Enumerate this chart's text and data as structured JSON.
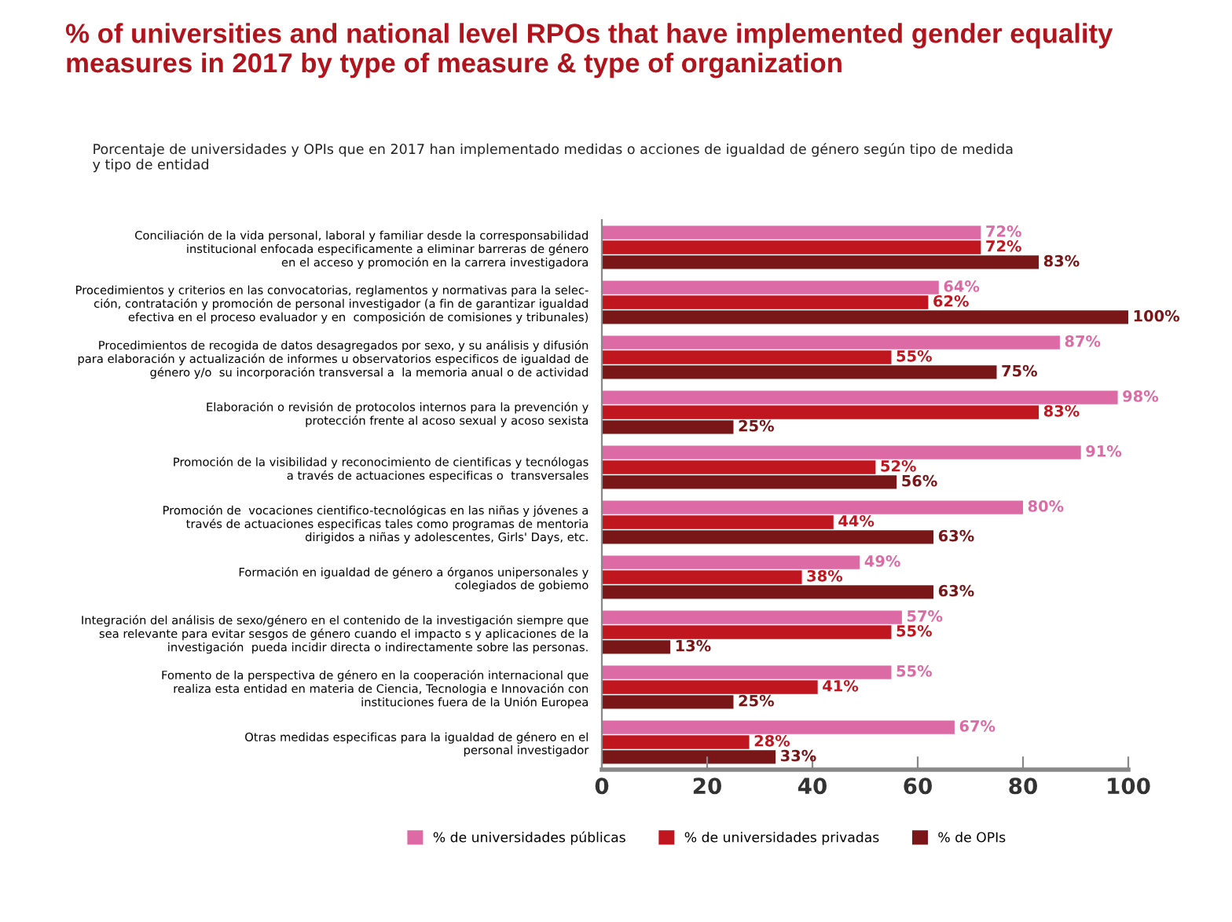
{
  "chart_data": {
    "type": "bar",
    "orientation": "horizontal",
    "title": "% of universities and national level RPOs that have implemented gender equality\nmeasures in 2017 by type of measure & type of organization",
    "subtitle": "Porcentaje de universidades y OPIs que en 2017 han implementado medidas o acciones de igualdad de género según tipo de medida\ny tipo de entidad",
    "categories": [
      "Conciliación de la vida personal, laboral y familiar desde la corresponsabilidad\ninstitucional enfocada especificamente a eliminar barreras de género\nen el acceso y promoción en la carrera investigadora",
      "Procedimientos y criterios en las convocatorias, reglamentos y normativas para la selec-\nción, contratación y promoción de personal investigador (a fin de garantizar igualdad\nefectiva en el proceso evaluador y en  composición de comisiones y tribunales)",
      "Procedimientos de recogida de datos desagregados por sexo, y su análisis y difusión\npara elaboración y actualización de informes u observatorios especificos de igualdad de\ngénero y/o  su incorporación transversal a  la memoria anual o de actividad",
      "Elaboración o revisión de protocolos internos para la prevención y\nprotección frente al acoso sexual y acoso sexista",
      "Promoción de la visibilidad y reconocimiento de cientificas y tecnólogas\na través de actuaciones especificas o  transversales",
      "Promoción de  vocaciones cientifico-tecnológicas en las niñas y jóvenes a\ntravés de actuaciones especificas tales como programas de mentoria\ndirigidos a niñas y adolescentes, Girls' Days, etc.",
      "Formación en igualdad de género a órganos unipersonales y\ncolegiados de gobiemo",
      "Integración del análisis de sexo/género en el contenido de la investigación siempre que\nsea relevante para evitar sesgos de género cuando el impacto s y aplicaciones de la\ninvestigación  pueda incidir directa o indirectamente sobre las personas.",
      "Fomento de la perspectiva de género en la cooperación internacional que\nrealiza esta entidad en materia de Ciencia, Tecnologia e Innovación con\ninstituciones fuera de la Unión Europea",
      "Otras medidas especificas para la igualdad de género en el\npersonal investigador"
    ],
    "series": [
      {
        "name": "% de universidades públicas",
        "color": "#dc6aa4",
        "values": [
          72,
          64,
          87,
          98,
          91,
          80,
          49,
          57,
          55,
          67
        ],
        "value_labels": [
          "72%",
          "64%",
          "87%",
          "98%",
          "91%",
          "80%",
          "49%",
          "57%",
          "55%",
          "67%"
        ]
      },
      {
        "name": "% de universidades privadas",
        "color": "#c0161f",
        "values": [
          72,
          62,
          55,
          83,
          52,
          44,
          38,
          55,
          41,
          28
        ],
        "value_labels": [
          "72%",
          "62%",
          "55%",
          "83%",
          "52%",
          "44%",
          "38%",
          "55%",
          "41%",
          "28%"
        ]
      },
      {
        "name": "% de OPIs",
        "color": "#791618",
        "values": [
          83,
          100,
          75,
          25,
          56,
          63,
          63,
          13,
          25,
          33
        ],
        "value_labels": [
          "83%",
          "100%",
          "75%",
          "25%",
          "56%",
          "63%",
          "63%",
          "13%",
          "25%",
          "33%"
        ]
      }
    ],
    "xlim": [
      0,
      100
    ],
    "xticks": [
      0,
      20,
      40,
      60,
      80,
      100
    ],
    "grid": false,
    "legend": "bottom"
  }
}
